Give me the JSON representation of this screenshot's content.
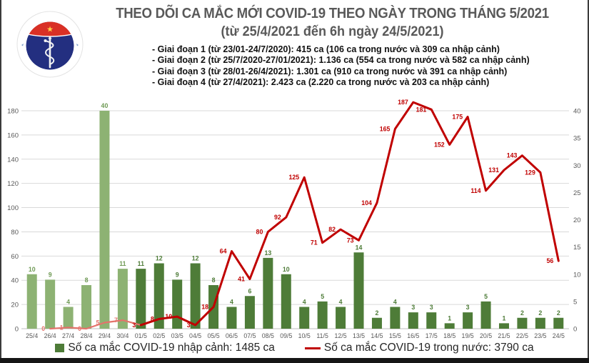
{
  "header": {
    "title_line1": "THEO DÕI CA MẮC MỚI COVID-19 THEO NGÀY TRONG THÁNG 5/2021",
    "title_line2": "(từ 25/4/2021 đến 6h ngày 24/5/2021)",
    "bullets": [
      "- Giai đoạn 1 (từ 23/01-24/7/2020): 415 ca (106 ca trong nước và 309 ca nhập cảnh)",
      "- Giai đoạn 2 (từ 25/7/2020-27/01/2021): 1.136 ca (554 ca trong nước và 582 ca nhập cảnh)",
      "- Giai đoạn 3 (từ 28/01-26/4/2021): 1.301 ca (910 ca trong nước và 391 ca nhập cảnh)",
      "- Giai đoạn 4 (từ 27/4/2021): 2.423 ca (2.220 ca trong nước và 203 ca nhập cảnh)"
    ]
  },
  "logo": {
    "top_text": "BỘ Y TẾ",
    "bottom_text": "MINISTRY OF HEALTH",
    "star": "★"
  },
  "colors": {
    "bar_april": "#8db273",
    "bar_may": "#4e7c38",
    "bar_label_april": "#6f9a55",
    "bar_label_may": "#4e7c38",
    "line_april": "#e4736c",
    "line_may": "#c00000",
    "title_gray": "#595959",
    "axis_text": "#595959",
    "gridline": "#d9d9d9",
    "axis_line": "#bfbfbf",
    "legend_text": "#262626",
    "logo_navy": "#232f80",
    "logo_red": "#d93025",
    "logo_blue_text": "#7f9ecb",
    "logo_star_yellow": "#ffd24a"
  },
  "chart_data": {
    "type": "bar",
    "subtype": "bar+line dual axis",
    "categories": [
      "25/4",
      "26/4",
      "27/4",
      "28/4",
      "29/4",
      "30/4",
      "01/5",
      "02/5",
      "03/5",
      "04/5",
      "05/5",
      "06/5",
      "07/5",
      "08/5",
      "09/5",
      "10/5",
      "11/5",
      "12/5",
      "13/5",
      "14/5",
      "15/5",
      "16/5",
      "17/5",
      "18/5",
      "19/5",
      "20/5",
      "21/5",
      "22/5",
      "23/5",
      "24/5"
    ],
    "series": [
      {
        "name": "Số ca mắc COVID-19 nhập cảnh",
        "type": "bar",
        "axis": "right",
        "values": [
          10,
          9,
          4,
          8,
          40,
          11,
          11,
          12,
          9,
          12,
          8,
          4,
          6,
          13,
          10,
          4,
          5,
          4,
          14,
          2,
          4,
          3,
          3,
          1,
          3,
          5,
          1,
          2,
          2,
          2
        ]
      },
      {
        "name": "Số ca mắc COVID-19 trong nước",
        "type": "line",
        "axis": "left",
        "values": [
          null,
          0,
          1,
          0,
          5,
          7,
          3,
          8,
          10,
          3,
          18,
          64,
          41,
          80,
          92,
          125,
          71,
          82,
          73,
          104,
          165,
          187,
          181,
          152,
          175,
          114,
          131,
          143,
          129,
          56
        ]
      }
    ],
    "left_axis": {
      "min": 0,
      "max": 180,
      "step": 20,
      "ticks": [
        0,
        20,
        40,
        60,
        80,
        100,
        120,
        140,
        160,
        180
      ]
    },
    "right_axis": {
      "min": 0,
      "max": 40,
      "step": 5,
      "ticks": [
        0,
        5,
        10,
        15,
        20,
        25,
        30,
        35,
        40
      ]
    },
    "grid": true,
    "legend_position": "bottom",
    "legend": [
      {
        "label": "Số ca mắc COVID-19 nhập cảnh: 1485 ca",
        "total": 1485
      },
      {
        "label": "Số ca mắc COVID-19 trong nước: 3790 ca",
        "total": 3790
      }
    ]
  }
}
